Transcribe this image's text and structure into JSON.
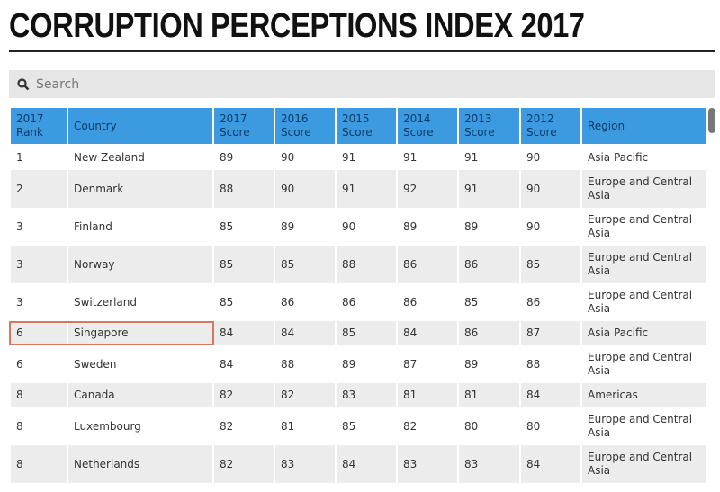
{
  "title": "CORRUPTION PERCEPTIONS INDEX 2017",
  "search": {
    "placeholder": "Search",
    "icon": "search-icon"
  },
  "colors": {
    "header": "#3c9be0",
    "highlight": "#d9775e"
  },
  "columns": [
    [
      "2017",
      "Rank"
    ],
    [
      "Country",
      ""
    ],
    [
      "2017",
      "Score"
    ],
    [
      "2016",
      "Score"
    ],
    [
      "2015",
      "Score"
    ],
    [
      "2014",
      "Score"
    ],
    [
      "2013",
      "Score"
    ],
    [
      "2012",
      "Score"
    ],
    [
      "Region",
      ""
    ]
  ],
  "rows": [
    [
      "1",
      "New Zealand",
      "89",
      "90",
      "91",
      "91",
      "91",
      "90",
      "Asia Pacific"
    ],
    [
      "2",
      "Denmark",
      "88",
      "90",
      "91",
      "92",
      "91",
      "90",
      "Europe and Central Asia"
    ],
    [
      "3",
      "Finland",
      "85",
      "89",
      "90",
      "89",
      "89",
      "90",
      "Europe and Central Asia"
    ],
    [
      "3",
      "Norway",
      "85",
      "85",
      "88",
      "86",
      "86",
      "85",
      "Europe and Central Asia"
    ],
    [
      "3",
      "Switzerland",
      "85",
      "86",
      "86",
      "86",
      "85",
      "86",
      "Europe and Central Asia"
    ],
    [
      "6",
      "Singapore",
      "84",
      "84",
      "85",
      "84",
      "86",
      "87",
      "Asia Pacific"
    ],
    [
      "6",
      "Sweden",
      "84",
      "88",
      "89",
      "87",
      "89",
      "88",
      "Europe and Central Asia"
    ],
    [
      "8",
      "Canada",
      "82",
      "82",
      "83",
      "81",
      "81",
      "84",
      "Americas"
    ],
    [
      "8",
      "Luxembourg",
      "82",
      "81",
      "85",
      "82",
      "80",
      "80",
      "Europe and Central Asia"
    ],
    [
      "8",
      "Netherlands",
      "82",
      "83",
      "84",
      "83",
      "83",
      "84",
      "Europe and Central Asia"
    ]
  ],
  "highlighted_row": "Singapore"
}
